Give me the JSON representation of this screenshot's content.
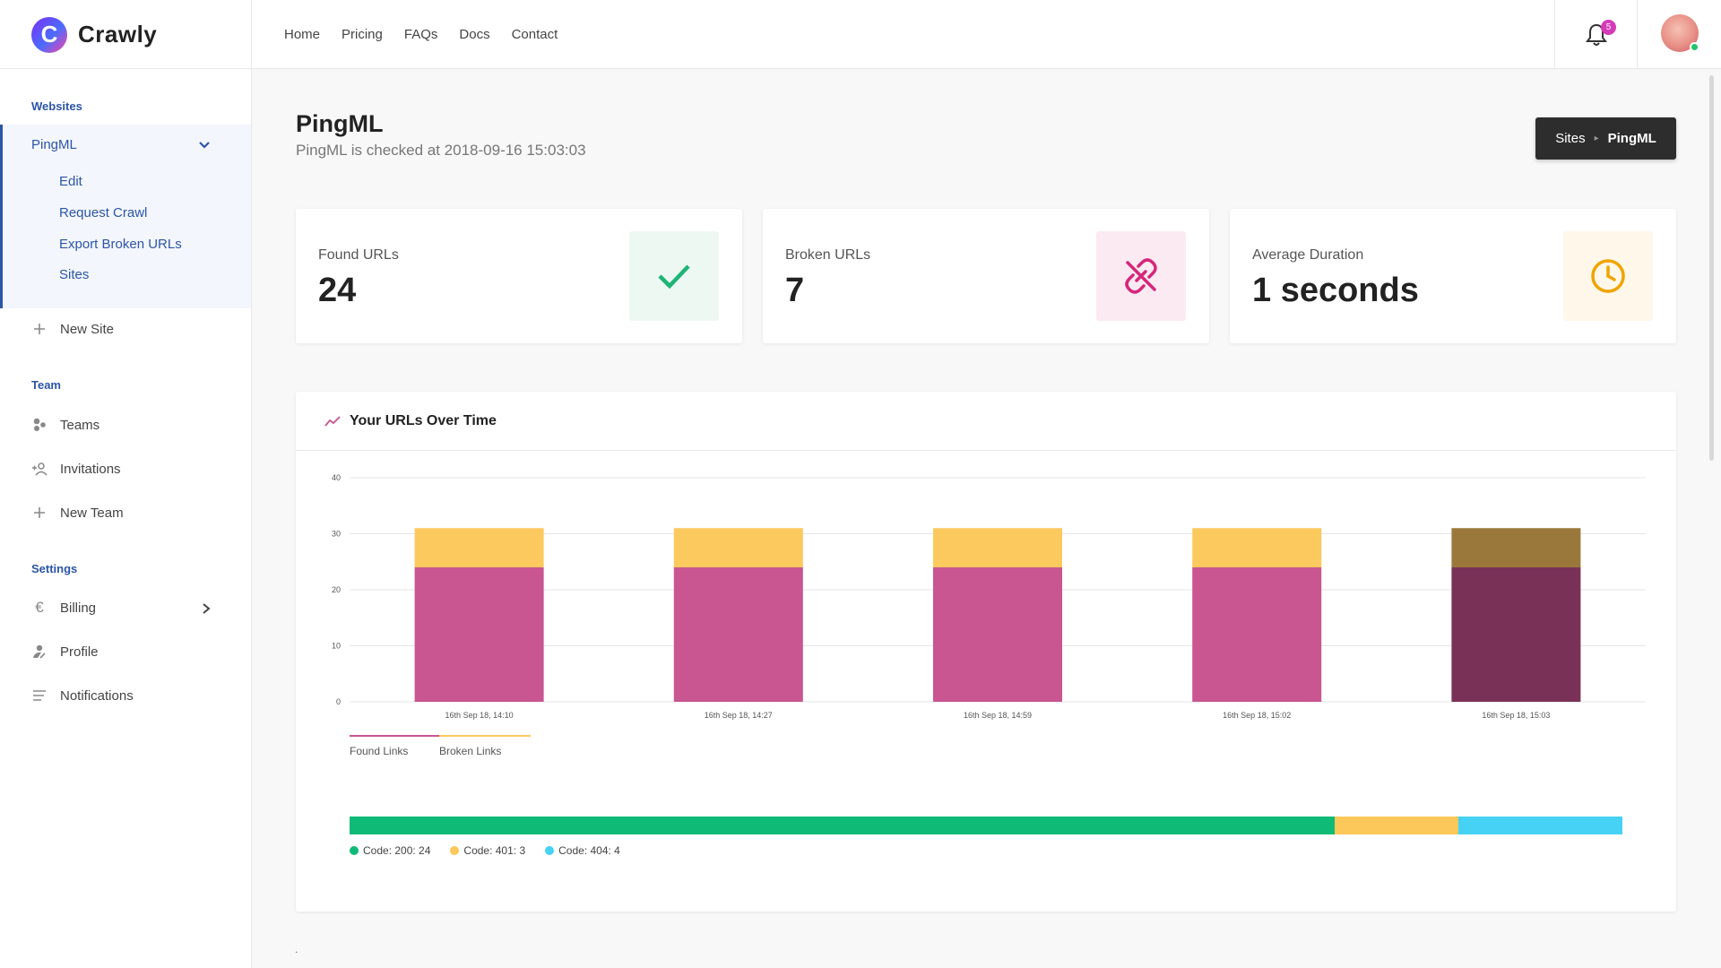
{
  "app": {
    "name": "Crawly",
    "logo_letter": "C"
  },
  "topnav": [
    {
      "label": "Home"
    },
    {
      "label": "Pricing"
    },
    {
      "label": "FAQs"
    },
    {
      "label": "Docs"
    },
    {
      "label": "Contact"
    }
  ],
  "notifications": {
    "count": "5"
  },
  "sidebar": {
    "websites_label": "Websites",
    "current_site": "PingML",
    "site_links": [
      {
        "label": "Edit"
      },
      {
        "label": "Request Crawl"
      },
      {
        "label": "Export Broken URLs"
      },
      {
        "label": "Sites"
      }
    ],
    "new_site": "New Site",
    "team_label": "Team",
    "team_items": [
      {
        "label": "Teams",
        "icon": "teams-icon"
      },
      {
        "label": "Invitations",
        "icon": "add-user-icon"
      },
      {
        "label": "New Team",
        "icon": "plus-icon"
      }
    ],
    "settings_label": "Settings",
    "settings_items": [
      {
        "label": "Billing",
        "icon": "euro-icon"
      },
      {
        "label": "Profile",
        "icon": "user-edit-icon"
      },
      {
        "label": "Notifications",
        "icon": "lines-icon"
      }
    ]
  },
  "page": {
    "title": "PingML",
    "subtitle": "PingML is checked at 2018-09-16 15:03:03"
  },
  "breadcrumb": {
    "parent": "Sites",
    "current": "PingML"
  },
  "stats": [
    {
      "label": "Found URLs",
      "value": "24",
      "icon": "check-icon",
      "color": "#1db576",
      "bg": "#eef8f3"
    },
    {
      "label": "Broken URLs",
      "value": "7",
      "icon": "broken-link-icon",
      "color": "#d6267a",
      "bg": "#fbeaf2"
    },
    {
      "label": "Average Duration",
      "value": "1 seconds",
      "icon": "clock-icon",
      "color": "#f0a400",
      "bg": "#fff8ea"
    }
  ],
  "chart": {
    "title": "Your URLs Over Time",
    "legend_labels": [
      "Found Links",
      "Broken Links"
    ],
    "status_bar": [
      {
        "label": "Code: 200: 24",
        "value": 24,
        "color": "#0fba76"
      },
      {
        "label": "Code: 401: 3",
        "value": 3,
        "color": "#fcc85a"
      },
      {
        "label": "Code: 404: 4",
        "value": 4,
        "color": "#45d2f5"
      }
    ]
  },
  "chart_data": {
    "type": "bar",
    "stacked": true,
    "categories": [
      "16th Sep 18, 14:10",
      "16th Sep 18, 14:27",
      "16th Sep 18, 14:59",
      "16th Sep 18, 15:02",
      "16th Sep 18, 15:03"
    ],
    "series": [
      {
        "name": "Found Links",
        "values": [
          24,
          24,
          24,
          24,
          24
        ],
        "color": "#c95591"
      },
      {
        "name": "Broken Links",
        "values": [
          7,
          7,
          7,
          7,
          7
        ],
        "color": "#fcc95e"
      }
    ],
    "highlight_index": 4,
    "highlight_colors": [
      "#7a3157",
      "#9a783c"
    ],
    "ylim": [
      0,
      40
    ],
    "yticks": [
      "0",
      "10",
      "20",
      "30",
      "40"
    ],
    "grid": true,
    "legend": "bottom-left"
  },
  "footer": {
    "text": "."
  }
}
